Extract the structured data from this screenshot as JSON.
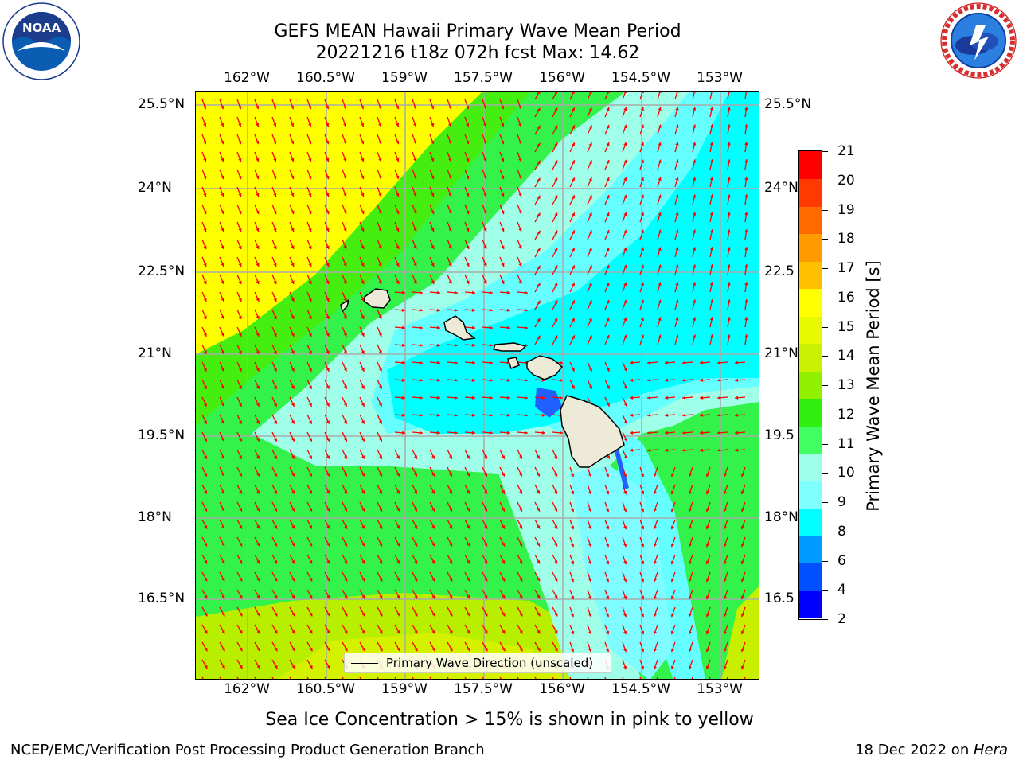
{
  "title_line1": "GEFS MEAN Hawaii Primary Wave Mean Period",
  "title_line2": "20221216 t18z 072h fcst   Max: 14.62",
  "lon_ticks": [
    "162°W",
    "160.5°W",
    "159°W",
    "157.5°W",
    "156°W",
    "154.5°W",
    "153°W"
  ],
  "lat_ticks": [
    "25.5°N",
    "24°N",
    "22.5°N",
    "21°N",
    "19.5°N",
    "18°N",
    "16.5°N"
  ],
  "lat_ticks_right": [
    "25.5°N",
    "24°N",
    "22.5",
    "21°N",
    "19.5",
    "18°N",
    "16.5"
  ],
  "legend_label": "Primary Wave Direction (unscaled)",
  "colorbar": {
    "label": "Primary Wave Mean Period [s]",
    "ticks": [
      "21",
      "20",
      "19",
      "18",
      "17",
      "16",
      "15",
      "14",
      "13",
      "12",
      "11",
      "10",
      "9",
      "8",
      "6",
      "4",
      "2"
    ],
    "colors": [
      "#0000ff",
      "#0050ff",
      "#009bff",
      "#00ffff",
      "#80ffff",
      "#a0ffe8",
      "#40ff60",
      "#30ee10",
      "#90f000",
      "#c8f000",
      "#e8f800",
      "#ffff00",
      "#ffc000",
      "#ff9a00",
      "#ff6a00",
      "#ff3a00",
      "#ff0000"
    ]
  },
  "vector_color": "#ff0000",
  "land_color": "#eeead8",
  "footer_note": "Sea Ice Concentration > 15% is shown in pink to yellow",
  "credit": "NCEP/EMC/Verification Post Processing Product Generation Branch",
  "date_text": "18 Dec 2022 on ",
  "date_host": "Hera",
  "noaa_logo": {
    "text": "NOAA",
    "ring_text": "NATIONAL OCEANIC AND ATMOSPHERIC ADMINISTRATION · U.S. DEPARTMENT OF COMMERCE"
  },
  "nws_logo": {
    "ring_text": "NATIONAL WEATHER SERVICE"
  }
}
